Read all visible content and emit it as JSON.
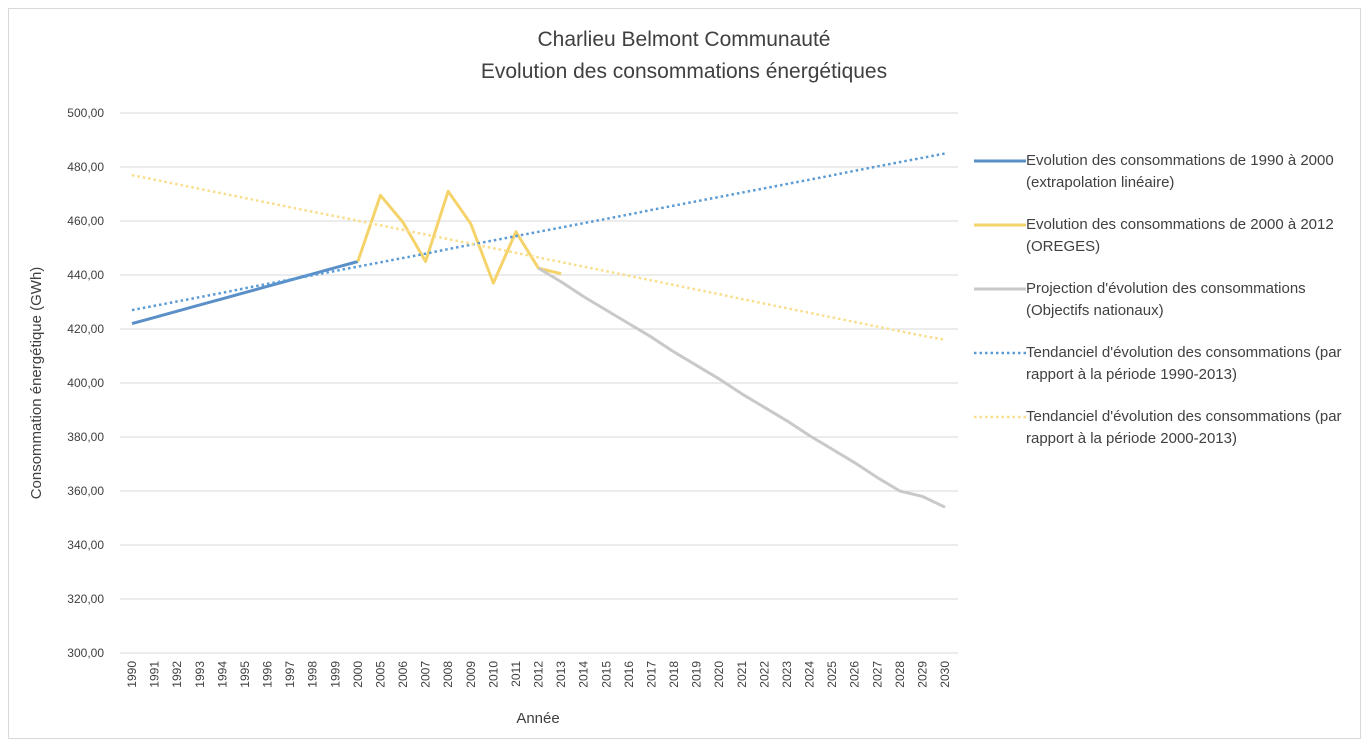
{
  "chart_data": {
    "type": "line",
    "title": "Charlieu Belmont Communauté",
    "subtitle": "Evolution des consommations énergétiques",
    "x_label": "Année",
    "y_label": "Consommation énergétique (GWh)",
    "categories": [
      "1990",
      "1991",
      "1992",
      "1993",
      "1994",
      "1995",
      "1996",
      "1997",
      "1998",
      "1999",
      "2000",
      "2005",
      "2006",
      "2007",
      "2008",
      "2009",
      "2010",
      "2011",
      "2012",
      "2013",
      "2014",
      "2015",
      "2016",
      "2017",
      "2018",
      "2019",
      "2020",
      "2021",
      "2022",
      "2023",
      "2024",
      "2025",
      "2026",
      "2027",
      "2028",
      "2029",
      "2030"
    ],
    "ylim": [
      300,
      500
    ],
    "yticks": [
      {
        "value": 300,
        "label": "300,00"
      },
      {
        "value": 320,
        "label": "320,00"
      },
      {
        "value": 340,
        "label": "340,00"
      },
      {
        "value": 360,
        "label": "360,00"
      },
      {
        "value": 380,
        "label": "380,00"
      },
      {
        "value": 400,
        "label": "400,00"
      },
      {
        "value": 420,
        "label": "420,00"
      },
      {
        "value": 440,
        "label": "440,00"
      },
      {
        "value": 460,
        "label": "460,00"
      },
      {
        "value": 480,
        "label": "480,00"
      },
      {
        "value": 500,
        "label": "500,00"
      }
    ],
    "grid": true,
    "legend": "right",
    "series": [
      {
        "name": "Evolution des consommations de 1990 à 2000 (extrapolation linéaire)",
        "color": "#5b8fc7",
        "dash": "solid",
        "values": [
          422,
          424.3,
          426.6,
          428.9,
          431.2,
          433.5,
          435.8,
          438.1,
          440.4,
          442.7,
          445,
          null,
          null,
          null,
          null,
          null,
          null,
          null,
          null,
          null,
          null,
          null,
          null,
          null,
          null,
          null,
          null,
          null,
          null,
          null,
          null,
          null,
          null,
          null,
          null,
          null,
          null
        ]
      },
      {
        "name": "Evolution des consommations de 2000 à 2012 (OREGES)",
        "color": "#f5d36b",
        "dash": "solid",
        "values": [
          null,
          null,
          null,
          null,
          null,
          null,
          null,
          null,
          null,
          null,
          445,
          469.5,
          459.5,
          445,
          471,
          459,
          437,
          456,
          442.5,
          440.5,
          null,
          null,
          null,
          null,
          null,
          null,
          null,
          null,
          null,
          null,
          null,
          null,
          null,
          null,
          null,
          null,
          null
        ]
      },
      {
        "name": "Projection d'évolution des consommations (Objectifs nationaux)",
        "color": "#c9c9c9",
        "dash": "solid",
        "values": [
          null,
          null,
          null,
          null,
          null,
          null,
          null,
          null,
          null,
          null,
          null,
          null,
          null,
          null,
          null,
          null,
          null,
          null,
          442.5,
          437.5,
          432,
          427,
          422,
          417,
          411.5,
          406.5,
          401.5,
          396,
          391,
          386,
          380.5,
          375.5,
          370.5,
          365,
          360,
          358,
          354
        ]
      },
      {
        "name": "Tendanciel d'évolution des consommations (par rapport à la période 1990-2013)",
        "color": "#5b9bd5",
        "dash": "dotted",
        "values": [
          427,
          428.6,
          430.2,
          431.8,
          433.4,
          435.1,
          436.7,
          438.3,
          439.9,
          441.5,
          443.1,
          444.7,
          446.3,
          447.9,
          449.6,
          451.2,
          452.8,
          454.4,
          456,
          457.6,
          459.2,
          460.8,
          462.4,
          464.1,
          465.7,
          467.3,
          468.9,
          470.5,
          472.1,
          473.7,
          475.3,
          476.9,
          478.6,
          480.2,
          481.8,
          483.4,
          485
        ]
      },
      {
        "name": "Tendanciel d'évolution des consommations (par rapport à la période 2000-2013)",
        "color": "#f8de8a",
        "dash": "dotted",
        "values": [
          477,
          475.3,
          473.6,
          471.9,
          470.2,
          468.5,
          466.8,
          465.1,
          463.4,
          461.8,
          460.1,
          458.4,
          456.7,
          455,
          453.3,
          451.6,
          449.9,
          448.2,
          446.5,
          444.8,
          443.1,
          441.4,
          439.7,
          438,
          436.3,
          434.6,
          432.9,
          431.1,
          429.4,
          427.7,
          426,
          424.3,
          422.6,
          420.9,
          419.2,
          417.5,
          416
        ]
      }
    ]
  }
}
